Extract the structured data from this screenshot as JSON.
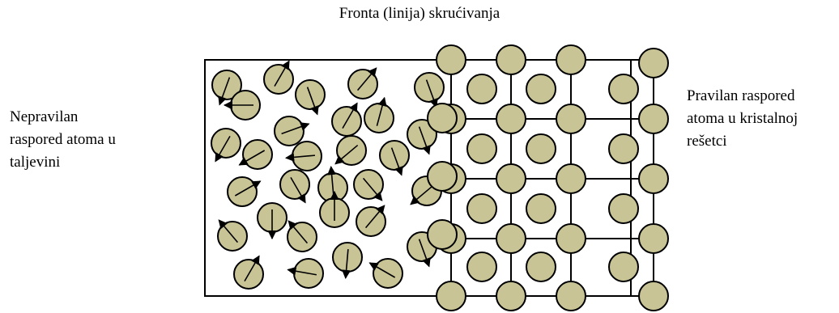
{
  "title": "Fronta (linija) skrućivanja",
  "left_label": [
    "Nepravilan",
    "raspored atoma u",
    "taljevini"
  ],
  "right_label": [
    "Pravilan raspored",
    "atoma u kristalnoj",
    "rešetci"
  ],
  "colors": {
    "atom_fill": "#c8c496",
    "stroke": "#000000",
    "background": "#ffffff"
  }
}
